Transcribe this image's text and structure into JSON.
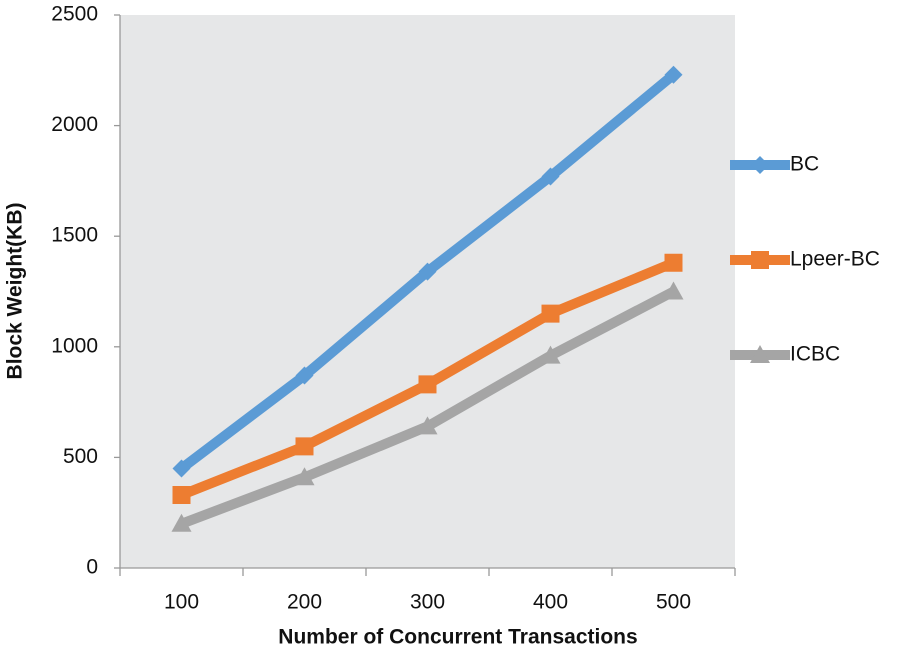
{
  "chart_data": {
    "type": "line",
    "x_label": "Number of Concurrent Transactions",
    "y_label": "Block Weight(KB)",
    "categories": [
      "100",
      "200",
      "300",
      "400",
      "500"
    ],
    "series": [
      {
        "name": "BC",
        "color": "#5b9bd5",
        "marker": "diamond",
        "values": [
          450,
          870,
          1340,
          1770,
          2230
        ]
      },
      {
        "name": "Lpeer-BC",
        "color": "#ed7d31",
        "marker": "square",
        "values": [
          330,
          550,
          830,
          1150,
          1380
        ]
      },
      {
        "name": "ICBC",
        "color": "#a5a5a5",
        "marker": "triangle",
        "values": [
          200,
          410,
          640,
          960,
          1250
        ]
      }
    ],
    "ylim": [
      0,
      2500
    ],
    "yticks": [
      0,
      500,
      1000,
      1500,
      2000,
      2500
    ],
    "grid": false,
    "legend": "right",
    "plot_background": "#e6e7e8"
  }
}
